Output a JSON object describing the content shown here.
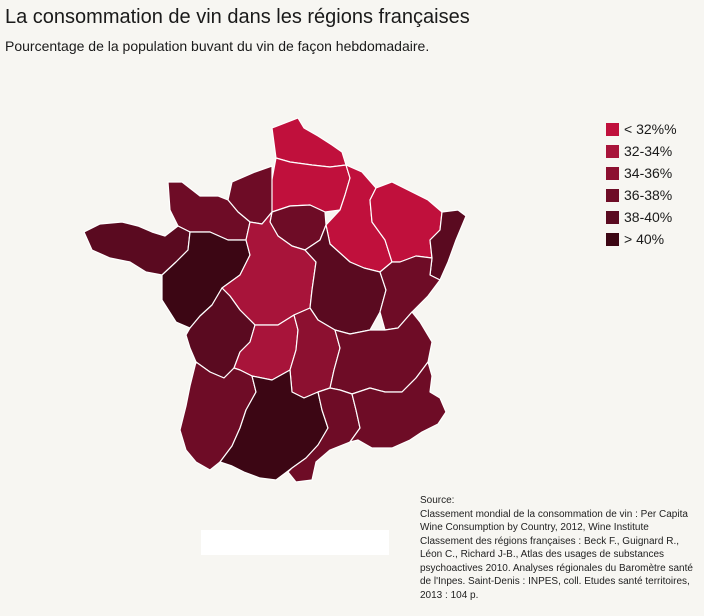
{
  "title": "La consommation de vin dans les régions françaises",
  "subtitle": "Pourcentage de la population buvant du vin de façon hebdomadaire.",
  "legend": [
    {
      "label": "< 32%%",
      "color": "#c0103c"
    },
    {
      "label": "32-34%",
      "color": "#a8143a"
    },
    {
      "label": "34-36%",
      "color": "#8c1030"
    },
    {
      "label": "36-38%",
      "color": "#6e0c26"
    },
    {
      "label": "38-40%",
      "color": "#5a0a20"
    },
    {
      "label": "> 40%",
      "color": "#3c0614"
    }
  ],
  "regions": [
    {
      "id": "nord-pas-de-calais",
      "class": "< 32%%"
    },
    {
      "id": "picardie",
      "class": "< 32%%"
    },
    {
      "id": "champagne-ardenne",
      "class": "< 32%%"
    },
    {
      "id": "lorraine",
      "class": "< 32%%"
    },
    {
      "id": "alsace",
      "class": "38-40%"
    },
    {
      "id": "haute-normandie",
      "class": "36-38%"
    },
    {
      "id": "basse-normandie",
      "class": "36-38%"
    },
    {
      "id": "ile-de-france",
      "class": "36-38%"
    },
    {
      "id": "bretagne",
      "class": "38-40%"
    },
    {
      "id": "pays-de-la-loire",
      "class": "> 40%"
    },
    {
      "id": "centre",
      "class": "32-34%"
    },
    {
      "id": "bourgogne",
      "class": "38-40%"
    },
    {
      "id": "franche-comte",
      "class": "36-38%"
    },
    {
      "id": "poitou-charentes",
      "class": "38-40%"
    },
    {
      "id": "limousin",
      "class": "32-34%"
    },
    {
      "id": "auvergne",
      "class": "34-36%"
    },
    {
      "id": "rhone-alpes",
      "class": "36-38%"
    },
    {
      "id": "aquitaine",
      "class": "36-38%"
    },
    {
      "id": "midi-pyrenees",
      "class": "> 40%"
    },
    {
      "id": "languedoc-roussillon",
      "class": "36-38%"
    },
    {
      "id": "provence-alpes-cote-d-azur",
      "class": "36-38%"
    }
  ],
  "source": [
    "Source:",
    "Classement mondial de la consommation de vin : Per Capita Wine Consumption by Country, 2012, Wine Institute",
    "Classement des régions françaises : Beck F., Guignard R., Léon C., Richard J-B., Atlas des usages de substances psychoactives 2010. Analyses régionales du Baromètre santé de l'Inpes. Saint-Denis : INPES, coll. Etudes santé territoires, 2013 : 104 p."
  ]
}
